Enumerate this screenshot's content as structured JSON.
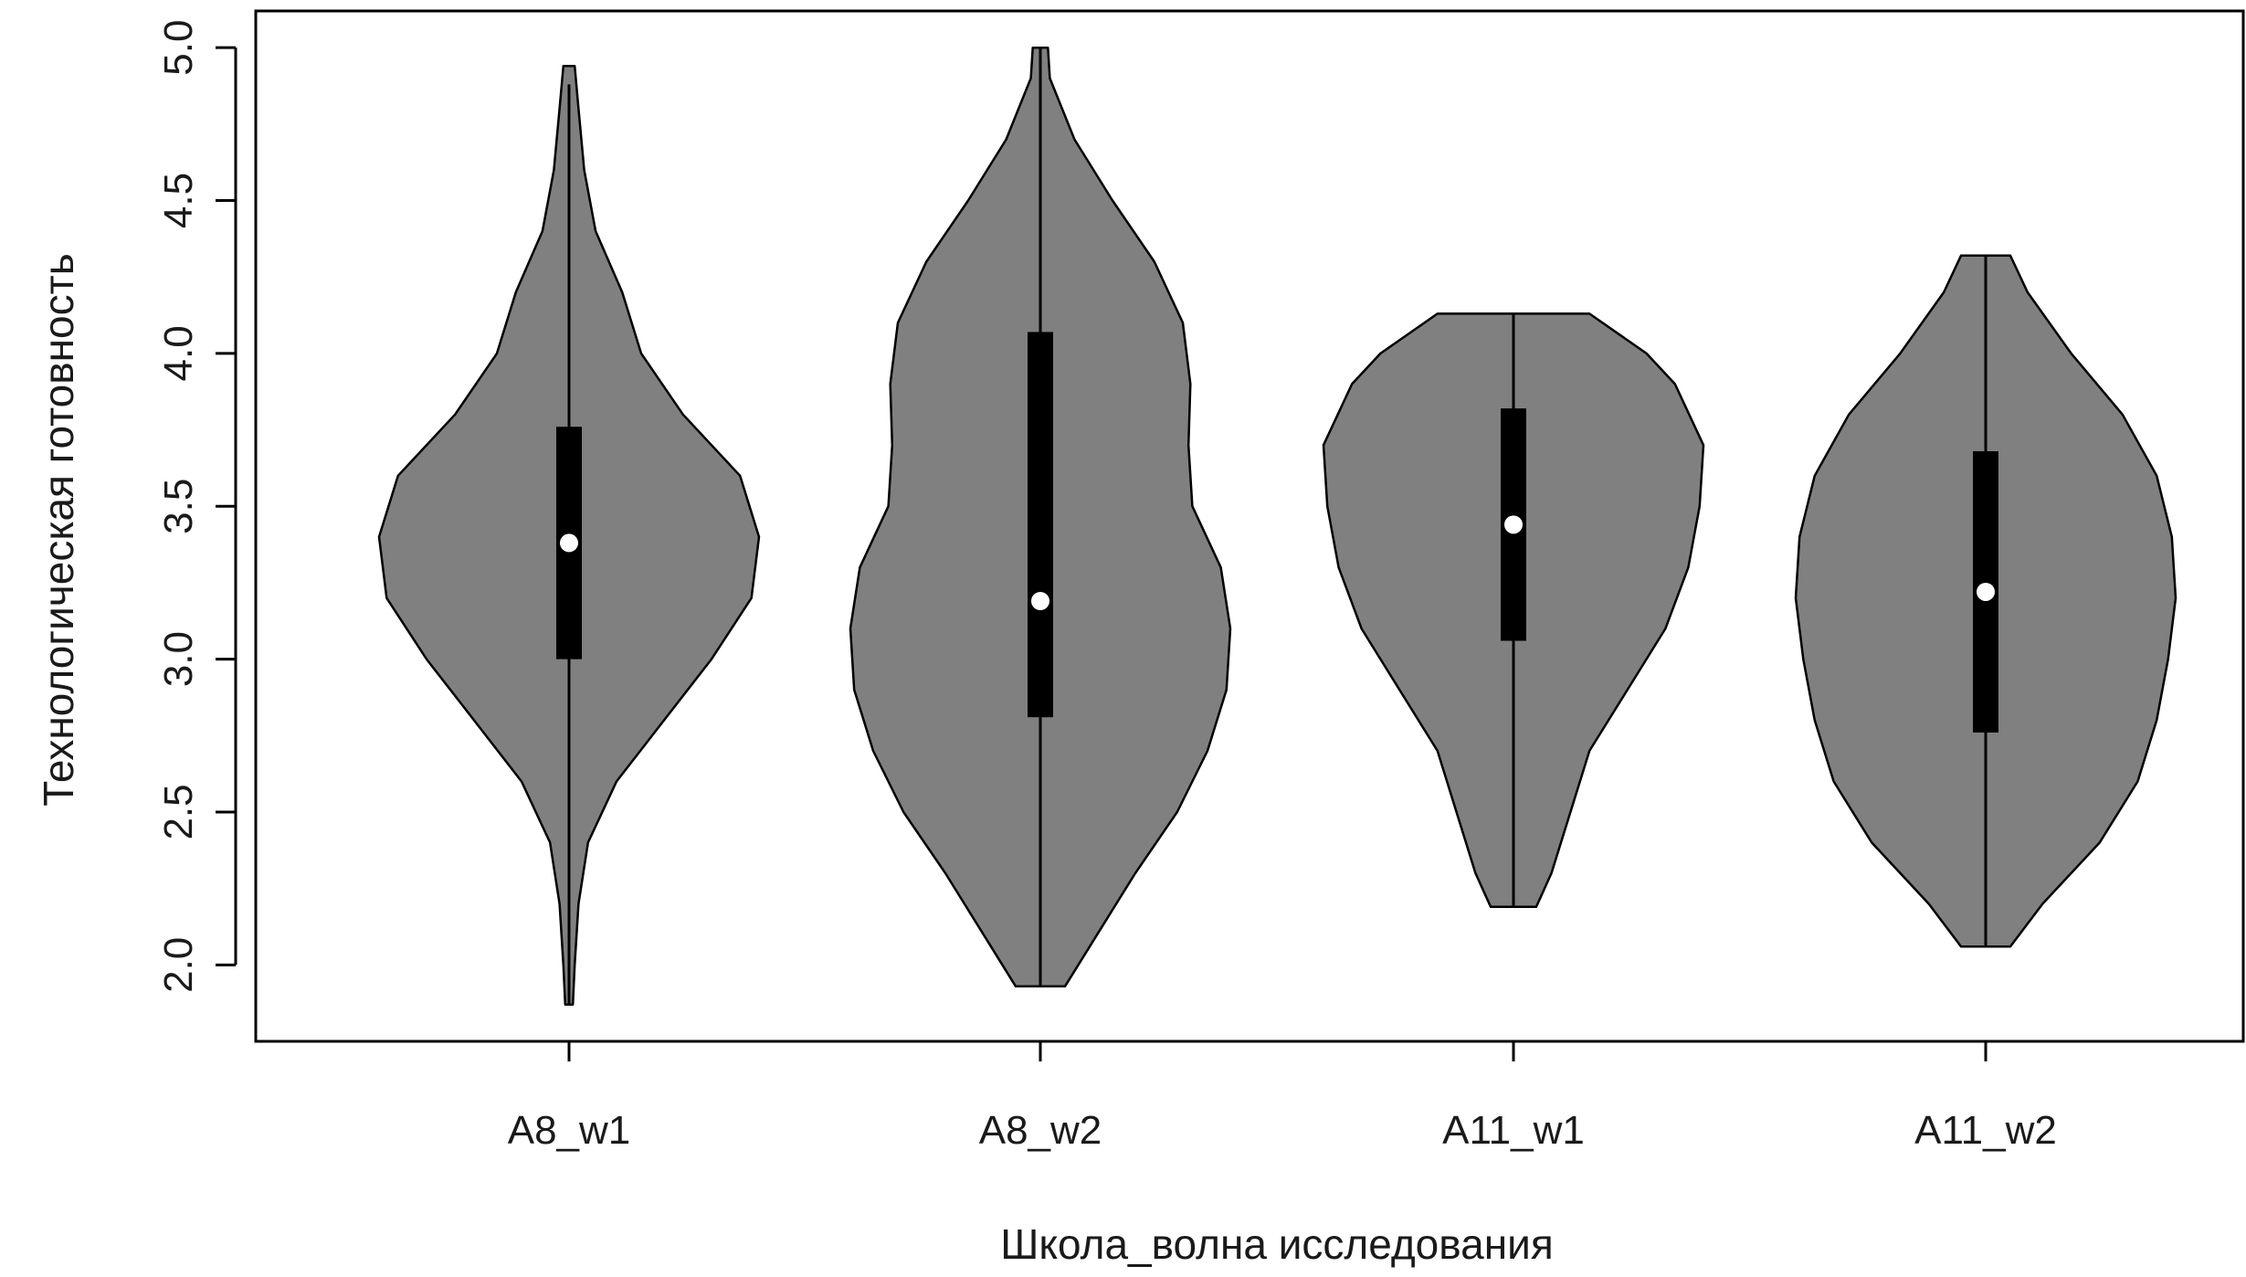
{
  "chart_data": {
    "type": "violin",
    "title": "",
    "xlabel": "Школа_волна исследования",
    "ylabel": "Технологическая готовность",
    "ylim": [
      1.75,
      5.12
    ],
    "yticks": [
      "2.0",
      "2.5",
      "3.0",
      "3.5",
      "4.0",
      "4.5",
      "5.0"
    ],
    "categories": [
      "A8_w1",
      "A8_w2",
      "A11_w1",
      "A11_w2"
    ],
    "colors": {
      "violin_fill": "#808080",
      "outline": "#000000",
      "box": "#000000",
      "median": "#ffffff"
    },
    "series": [
      {
        "whisker": [
          1.87,
          4.88
        ],
        "q1": 3.0,
        "q3": 3.76,
        "median": 3.38,
        "density": [
          [
            1.87,
            0.02
          ],
          [
            2.0,
            0.03
          ],
          [
            2.2,
            0.05
          ],
          [
            2.4,
            0.1
          ],
          [
            2.6,
            0.25
          ],
          [
            2.8,
            0.5
          ],
          [
            3.0,
            0.75
          ],
          [
            3.2,
            0.96
          ],
          [
            3.4,
            1.0
          ],
          [
            3.6,
            0.9
          ],
          [
            3.8,
            0.6
          ],
          [
            4.0,
            0.38
          ],
          [
            4.2,
            0.28
          ],
          [
            4.4,
            0.14
          ],
          [
            4.6,
            0.08
          ],
          [
            4.8,
            0.05
          ],
          [
            4.94,
            0.03
          ]
        ]
      },
      {
        "whisker": [
          1.93,
          5.0
        ],
        "q1": 2.81,
        "q3": 4.07,
        "median": 3.19,
        "density": [
          [
            1.93,
            0.13
          ],
          [
            2.1,
            0.3
          ],
          [
            2.3,
            0.5
          ],
          [
            2.5,
            0.72
          ],
          [
            2.7,
            0.88
          ],
          [
            2.9,
            0.98
          ],
          [
            3.1,
            1.0
          ],
          [
            3.3,
            0.95
          ],
          [
            3.5,
            0.8
          ],
          [
            3.7,
            0.78
          ],
          [
            3.9,
            0.79
          ],
          [
            4.1,
            0.75
          ],
          [
            4.3,
            0.6
          ],
          [
            4.5,
            0.38
          ],
          [
            4.7,
            0.18
          ],
          [
            4.9,
            0.05
          ],
          [
            5.0,
            0.04
          ]
        ]
      },
      {
        "whisker": [
          2.19,
          4.13
        ],
        "q1": 3.06,
        "q3": 3.82,
        "median": 3.44,
        "density": [
          [
            2.19,
            0.12
          ],
          [
            2.3,
            0.2
          ],
          [
            2.5,
            0.3
          ],
          [
            2.7,
            0.4
          ],
          [
            2.9,
            0.6
          ],
          [
            3.1,
            0.8
          ],
          [
            3.3,
            0.92
          ],
          [
            3.5,
            0.98
          ],
          [
            3.7,
            1.0
          ],
          [
            3.9,
            0.85
          ],
          [
            4.0,
            0.7
          ],
          [
            4.13,
            0.4
          ]
        ]
      },
      {
        "whisker": [
          2.06,
          4.32
        ],
        "q1": 2.76,
        "q3": 3.68,
        "median": 3.22,
        "density": [
          [
            2.06,
            0.13
          ],
          [
            2.2,
            0.3
          ],
          [
            2.4,
            0.6
          ],
          [
            2.6,
            0.8
          ],
          [
            2.8,
            0.9
          ],
          [
            3.0,
            0.96
          ],
          [
            3.2,
            1.0
          ],
          [
            3.4,
            0.98
          ],
          [
            3.6,
            0.9
          ],
          [
            3.8,
            0.72
          ],
          [
            4.0,
            0.45
          ],
          [
            4.2,
            0.22
          ],
          [
            4.32,
            0.13
          ]
        ]
      }
    ]
  }
}
